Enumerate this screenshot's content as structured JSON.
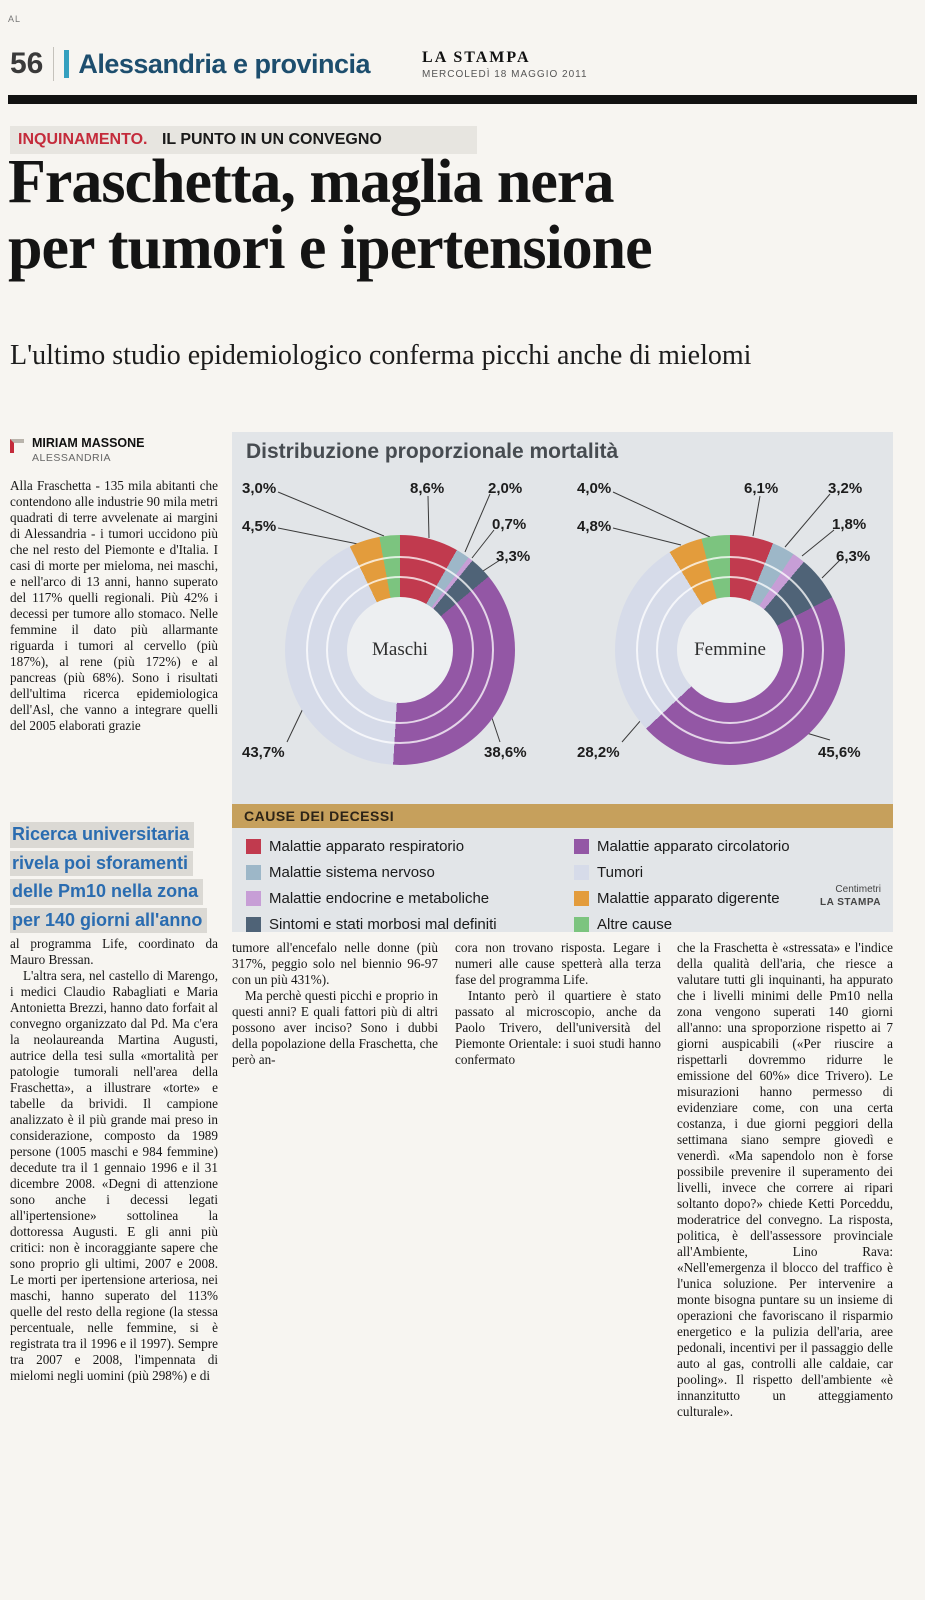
{
  "page": {
    "corner_mark": "AL",
    "page_number": "56",
    "section": "Alessandria e provincia",
    "masthead": "LA STAMPA",
    "date": "MERCOLEDÌ 18 MAGGIO 2011"
  },
  "article": {
    "kicker_category": "INQUINAMENTO.",
    "kicker": "IL PUNTO IN UN CONVEGNO",
    "headline_line1": "Fraschetta, maglia nera",
    "headline_line2": "per tumori e ipertensione",
    "subhead": "L'ultimo studio epidemiologico conferma picchi anche di mielomi",
    "byline_name": "MIRIAM MASSONE",
    "byline_city": "ALESSANDRIA",
    "col1_part1": [
      "Alla Fraschetta - 135 mila abitanti che contendono alle industrie 90 mila metri quadrati di terre avvelenate ai margini di Alessandria - i tumori uccidono più che nel resto del Piemonte e d'Italia. I casi di morte per mieloma, nei maschi, e nell'arco di 13 anni, hanno superato del 117% quelli regionali. Più 42% i decessi per tumore allo stomaco. Nelle femmine il dato più allarmante riguarda i tumori al cervello (più 187%), al rene (più 172%) e al pancreas (più 68%). Sono i risultati dell'ultima ricerca epidemiologica dell'Asl, che vanno a integrare quelli del 2005 elaborati grazie"
    ],
    "pullquote_lines": [
      "Ricerca universitaria",
      "rivela poi sforamenti",
      "delle Pm10 nella zona",
      "per 140 giorni all'anno"
    ],
    "col1_part2": [
      "al programma Life, coordinato da Mauro Bressan.",
      "L'altra sera, nel castello di Marengo, i medici Claudio Rabagliati e Maria Antonietta Brezzi, hanno dato forfait al convegno organizzato dal Pd. Ma c'era la neolaureanda Martina Augusti, autrice della tesi sulla «mortalità per patologie tumorali nell'area della Fraschetta», a illustrare «torte» e tabelle da brividi. Il campione analizzato è il più grande mai preso in considerazione, composto da 1989 persone (1005 maschi e 984 femmine) decedute tra il 1 gennaio 1996 e il 31 dicembre 2008. «Degni di attenzione sono anche i decessi legati all'ipertensione» sottolinea la dottoressa Augusti. E gli anni più critici: non è incoraggiante sapere che sono proprio gli ultimi, 2007 e 2008. Le morti per ipertensione arteriosa, nei maschi, hanno superato del 113% quelle del resto della regione (la stessa percentuale, nelle femmine, si è registrata tra il 1996 e il 1997). Sempre tra 2007 e 2008, l'impennata di mielomi negli uomini (più 298%) e di"
    ],
    "col2": [
      "tumore all'encefalo nelle donne (più 317%, peggio solo nel biennio 96-97 con un più 431%).",
      "Ma perchè questi picchi e proprio in questi anni? E quali fattori più di altri possono aver inciso? Sono i dubbi della popolazione della Fraschetta, che però an-"
    ],
    "col3": [
      "cora non trovano risposta. Legare i numeri alle cause spetterà alla terza fase del programma Life.",
      "Intanto però il quartiere è stato passato al microscopio, anche da Paolo Trivero, dell'università del Piemonte Orientale: i suoi studi hanno confermato"
    ],
    "col4": [
      "che la Fraschetta è «stressata» e l'indice della qualità dell'aria, che riesce a valutare tutti gli inquinanti, ha appurato che i livelli minimi delle Pm10 nella zona vengono superati 140 giorni all'anno: una sproporzione rispetto ai 7 giorni auspicabili («Per riuscire a rispettarli dovremmo ridurre le emissione del 60%» dice Trivero). Le misurazioni hanno permesso di evidenziare come, con una certa costanza, i due giorni peggiori della settimana siano sempre giovedì e venerdì. «Ma sapendolo non è forse possibile prevenire il superamento dei livelli, invece che correre ai ripari soltanto dopo?» chiede Ketti Porceddu, moderatrice del convegno. La risposta, politica, è dell'assessore provinciale all'Ambiente, Lino Rava: «Nell'emergenza il blocco del traffico è l'unica soluzione. Per intervenire a monte bisogna puntare su un insieme di operazioni che favoriscano il risparmio energetico e la pulizia dell'aria, aree pedonali, incentivi per il passaggio delle auto al gas, controlli alle caldaie, car pooling». Il rispetto dell'ambiente «è innanzitutto un atteggiamento culturale»."
    ]
  },
  "chart_data": {
    "type": "donut",
    "title": "Distribuzione proporzionale mortalità",
    "legend_title": "CAUSE DEI DECESSI",
    "credit_line1": "Centimetri",
    "credit_line2": "LA STAMPA",
    "legend": [
      {
        "label": "Malattie apparato respiratorio",
        "color": "#c13a4e"
      },
      {
        "label": "Malattie sistema nervoso",
        "color": "#9db7c8"
      },
      {
        "label": "Malattie endocrine e metaboliche",
        "color": "#c79ed6"
      },
      {
        "label": "Sintomi e stati morbosi mal definiti",
        "color": "#4f6377"
      },
      {
        "label": "Malattie apparato circolatorio",
        "color": "#9357a5"
      },
      {
        "label": "Tumori",
        "color": "#d6dbe9"
      },
      {
        "label": "Malattie apparato digerente",
        "color": "#e39c3c"
      },
      {
        "label": "Altre cause",
        "color": "#7cc47f"
      }
    ],
    "donuts": [
      {
        "name": "Maschi",
        "segments": [
          {
            "label": "Malattie apparato respiratorio",
            "value": 8.6,
            "display": "8,6%",
            "color": "#c13a4e"
          },
          {
            "label": "Malattie sistema nervoso",
            "value": 2.0,
            "display": "2,0%",
            "color": "#9db7c8"
          },
          {
            "label": "Malattie endocrine e metaboliche",
            "value": 0.7,
            "display": "0,7%",
            "color": "#c79ed6"
          },
          {
            "label": "Sintomi e stati morbosi mal definiti",
            "value": 3.3,
            "display": "3,3%",
            "color": "#4f6377"
          },
          {
            "label": "Malattie apparato circolatorio",
            "value": 38.6,
            "display": "38,6%",
            "color": "#9357a5"
          },
          {
            "label": "Tumori",
            "value": 43.7,
            "display": "43,7%",
            "color": "#d6dbe9"
          },
          {
            "label": "Malattie apparato digerente",
            "value": 4.5,
            "display": "4,5%",
            "color": "#e39c3c"
          },
          {
            "label": "Altre cause",
            "value": 3.0,
            "display": "3,0%",
            "color": "#7cc47f"
          }
        ]
      },
      {
        "name": "Femmine",
        "segments": [
          {
            "label": "Malattie apparato respiratorio",
            "value": 6.1,
            "display": "6,1%",
            "color": "#c13a4e"
          },
          {
            "label": "Malattie sistema nervoso",
            "value": 3.2,
            "display": "3,2%",
            "color": "#9db7c8"
          },
          {
            "label": "Malattie endocrine e metaboliche",
            "value": 1.8,
            "display": "1,8%",
            "color": "#c79ed6"
          },
          {
            "label": "Sintomi e stati morbosi mal definiti",
            "value": 6.3,
            "display": "6,3%",
            "color": "#4f6377"
          },
          {
            "label": "Malattie apparato circolatorio",
            "value": 45.6,
            "display": "45,6%",
            "color": "#9357a5"
          },
          {
            "label": "Tumori",
            "value": 28.2,
            "display": "28,2%",
            "color": "#d6dbe9"
          },
          {
            "label": "Malattie apparato digerente",
            "value": 4.8,
            "display": "4,8%",
            "color": "#e39c3c"
          },
          {
            "label": "Altre cause",
            "value": 4.0,
            "display": "4,0%",
            "color": "#7cc47f"
          }
        ]
      }
    ]
  }
}
